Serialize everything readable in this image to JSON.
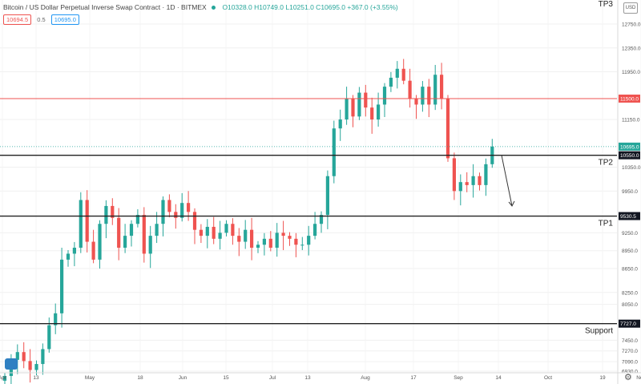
{
  "header": {
    "title": "Bitcoin / US Dollar Perpetual Inverse Swap Contract · 1D · BITMEX",
    "ohlc": "O10328.0 H10749.0 L10251.0 C10695.0 +367.0 (+3.55%)",
    "bid": "10694.5",
    "spread": "0.5",
    "ask": "10695.0",
    "currency_button": "USD",
    "settings_icon": "gear-icon",
    "logo_icon": "tradingview-logo-icon"
  },
  "chart_data": {
    "type": "candlestick",
    "symbol": "BITMEX",
    "timeframe": "1D",
    "y_axis": {
      "ticks": [
        "12750.0",
        "12350.0",
        "11950.0",
        "11150.0",
        "10350.0",
        "9950.0",
        "9250.0",
        "8950.0",
        "8650.0",
        "8250.0",
        "8050.0",
        "7450.0",
        "7270.0",
        "7090.0",
        "6930.0"
      ],
      "ylim": [
        6930,
        13150
      ]
    },
    "x_axis": {
      "ticks": [
        "Apr",
        "13",
        "May",
        "18",
        "Jun",
        "15",
        "Jul",
        "13",
        "Aug",
        "17",
        "Sep",
        "14",
        "Oct",
        "19",
        "Nov"
      ]
    },
    "horizontal_levels": [
      {
        "label": "TP3",
        "value": 13150,
        "price_label": "",
        "color": "#333333"
      },
      {
        "label": "",
        "value": 11500,
        "price_label": "11500.0",
        "color": "#ef5350"
      },
      {
        "label": "TP2",
        "value": 10550,
        "price_label": "10550.0",
        "color": "#222222"
      },
      {
        "label": "TP1",
        "value": 9530.5,
        "price_label": "9530.5",
        "color": "#222222"
      },
      {
        "label": "Support",
        "value": 7727,
        "price_label": "7727.0",
        "color": "#222222"
      }
    ],
    "last_price_label": "10695.0",
    "colors": {
      "up": "#26a69a",
      "down": "#ef5350"
    },
    "closes": [
      6850,
      7120,
      7250,
      7100,
      6950,
      7050,
      7300,
      7700,
      7900,
      8800,
      8900,
      9000,
      9800,
      9100,
      8800,
      9400,
      9700,
      9500,
      9000,
      9200,
      9400,
      9550,
      8900,
      9200,
      9400,
      9800,
      9600,
      9500,
      9750,
      9600,
      9300,
      9200,
      9350,
      9150,
      9250,
      9400,
      9200,
      9100,
      9300,
      9000,
      9050,
      9150,
      9000,
      9250,
      9200,
      9150,
      9050,
      9050,
      9200,
      9400,
      9550,
      10200,
      11000,
      11150,
      11500,
      11200,
      11600,
      11350,
      11150,
      11400,
      11700,
      11850,
      12000,
      11800,
      11500,
      11400,
      11700,
      11400,
      11900,
      11500,
      10500,
      9950,
      10100,
      10050,
      10200,
      10050,
      10400,
      10695
    ],
    "projection_arrow": {
      "from": [
        14,
        10550
      ],
      "to": [
        18,
        9700
      ]
    }
  }
}
